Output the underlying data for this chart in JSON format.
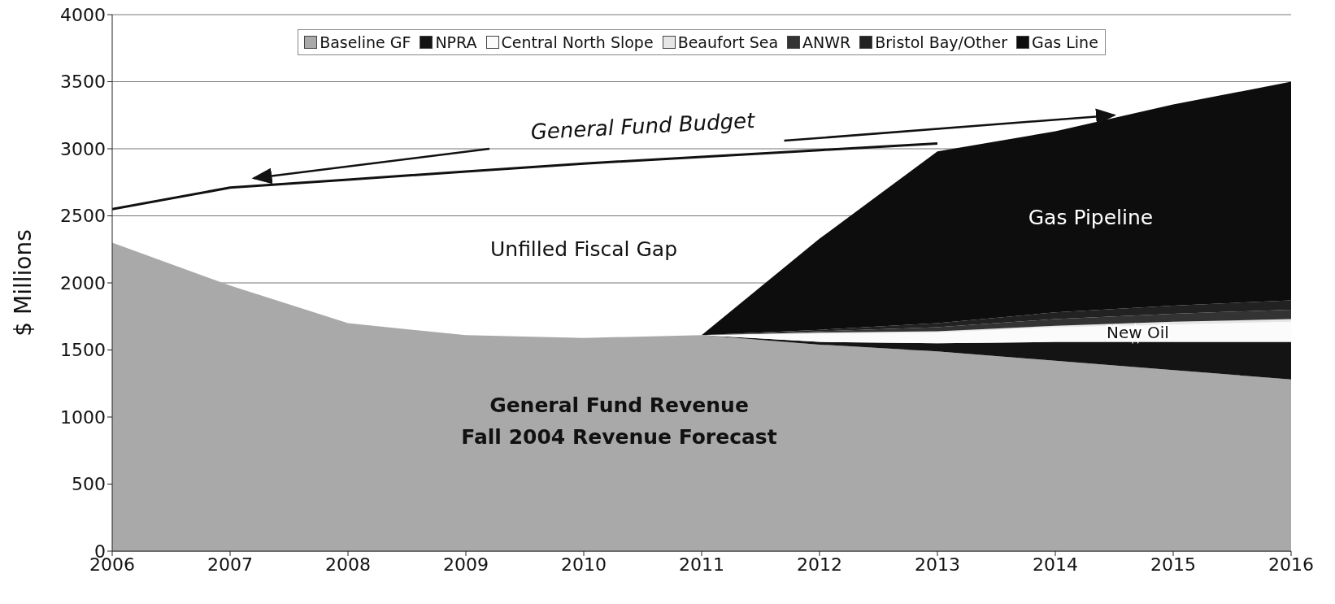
{
  "chart_data": {
    "type": "area",
    "stacked": true,
    "ylabel": "$ Millions",
    "x": [
      2006,
      2007,
      2008,
      2009,
      2010,
      2011,
      2012,
      2013,
      2014,
      2015,
      2016
    ],
    "xlim": [
      2006,
      2016
    ],
    "xticks": [
      2006,
      2007,
      2008,
      2009,
      2010,
      2011,
      2012,
      2013,
      2014,
      2015,
      2016
    ],
    "ylim": [
      0,
      4000
    ],
    "yticks": [
      0,
      500,
      1000,
      1500,
      2000,
      2500,
      3000,
      3500,
      4000
    ],
    "grid": "y",
    "legend": "top",
    "series": [
      {
        "name": "Baseline GF",
        "color": "#a9a9a9",
        "values": [
          2300,
          1980,
          1700,
          1610,
          1590,
          1610,
          1540,
          1490,
          1420,
          1350,
          1280
        ]
      },
      {
        "name": "NPRA",
        "color": "#141414",
        "values": [
          null,
          null,
          null,
          null,
          null,
          0,
          20,
          60,
          140,
          210,
          280
        ]
      },
      {
        "name": "Central North Slope",
        "color": "#fbfbfb",
        "values": [
          null,
          null,
          null,
          null,
          null,
          0,
          60,
          80,
          110,
          130,
          150
        ]
      },
      {
        "name": "Beaufort Sea",
        "color": "#e6e6e6",
        "values": [
          null,
          null,
          null,
          null,
          null,
          0,
          10,
          10,
          10,
          20,
          20
        ]
      },
      {
        "name": "ANWR",
        "color": "#333333",
        "values": [
          null,
          null,
          null,
          null,
          null,
          0,
          10,
          30,
          50,
          60,
          70
        ]
      },
      {
        "name": "Bristol Bay/Other",
        "color": "#222222",
        "values": [
          null,
          null,
          null,
          null,
          null,
          0,
          10,
          30,
          50,
          60,
          70
        ]
      },
      {
        "name": "Gas Line",
        "color": "#0d0d0d",
        "values": [
          null,
          null,
          null,
          null,
          null,
          0,
          680,
          1280,
          1350,
          1500,
          1630
        ]
      },
      {
        "type": "line",
        "color": "#111111",
        "values": [
          2550,
          2710,
          2770,
          2830,
          2890,
          2940,
          2990,
          3040,
          null,
          null,
          null
        ]
      }
    ],
    "annotations": [
      "General Fund Budget",
      "Unfilled Fiscal Gap",
      "Gas Pipeline",
      "New Oil",
      "General Fund Revenue",
      "Fall 2004 Revenue Forecast"
    ]
  }
}
